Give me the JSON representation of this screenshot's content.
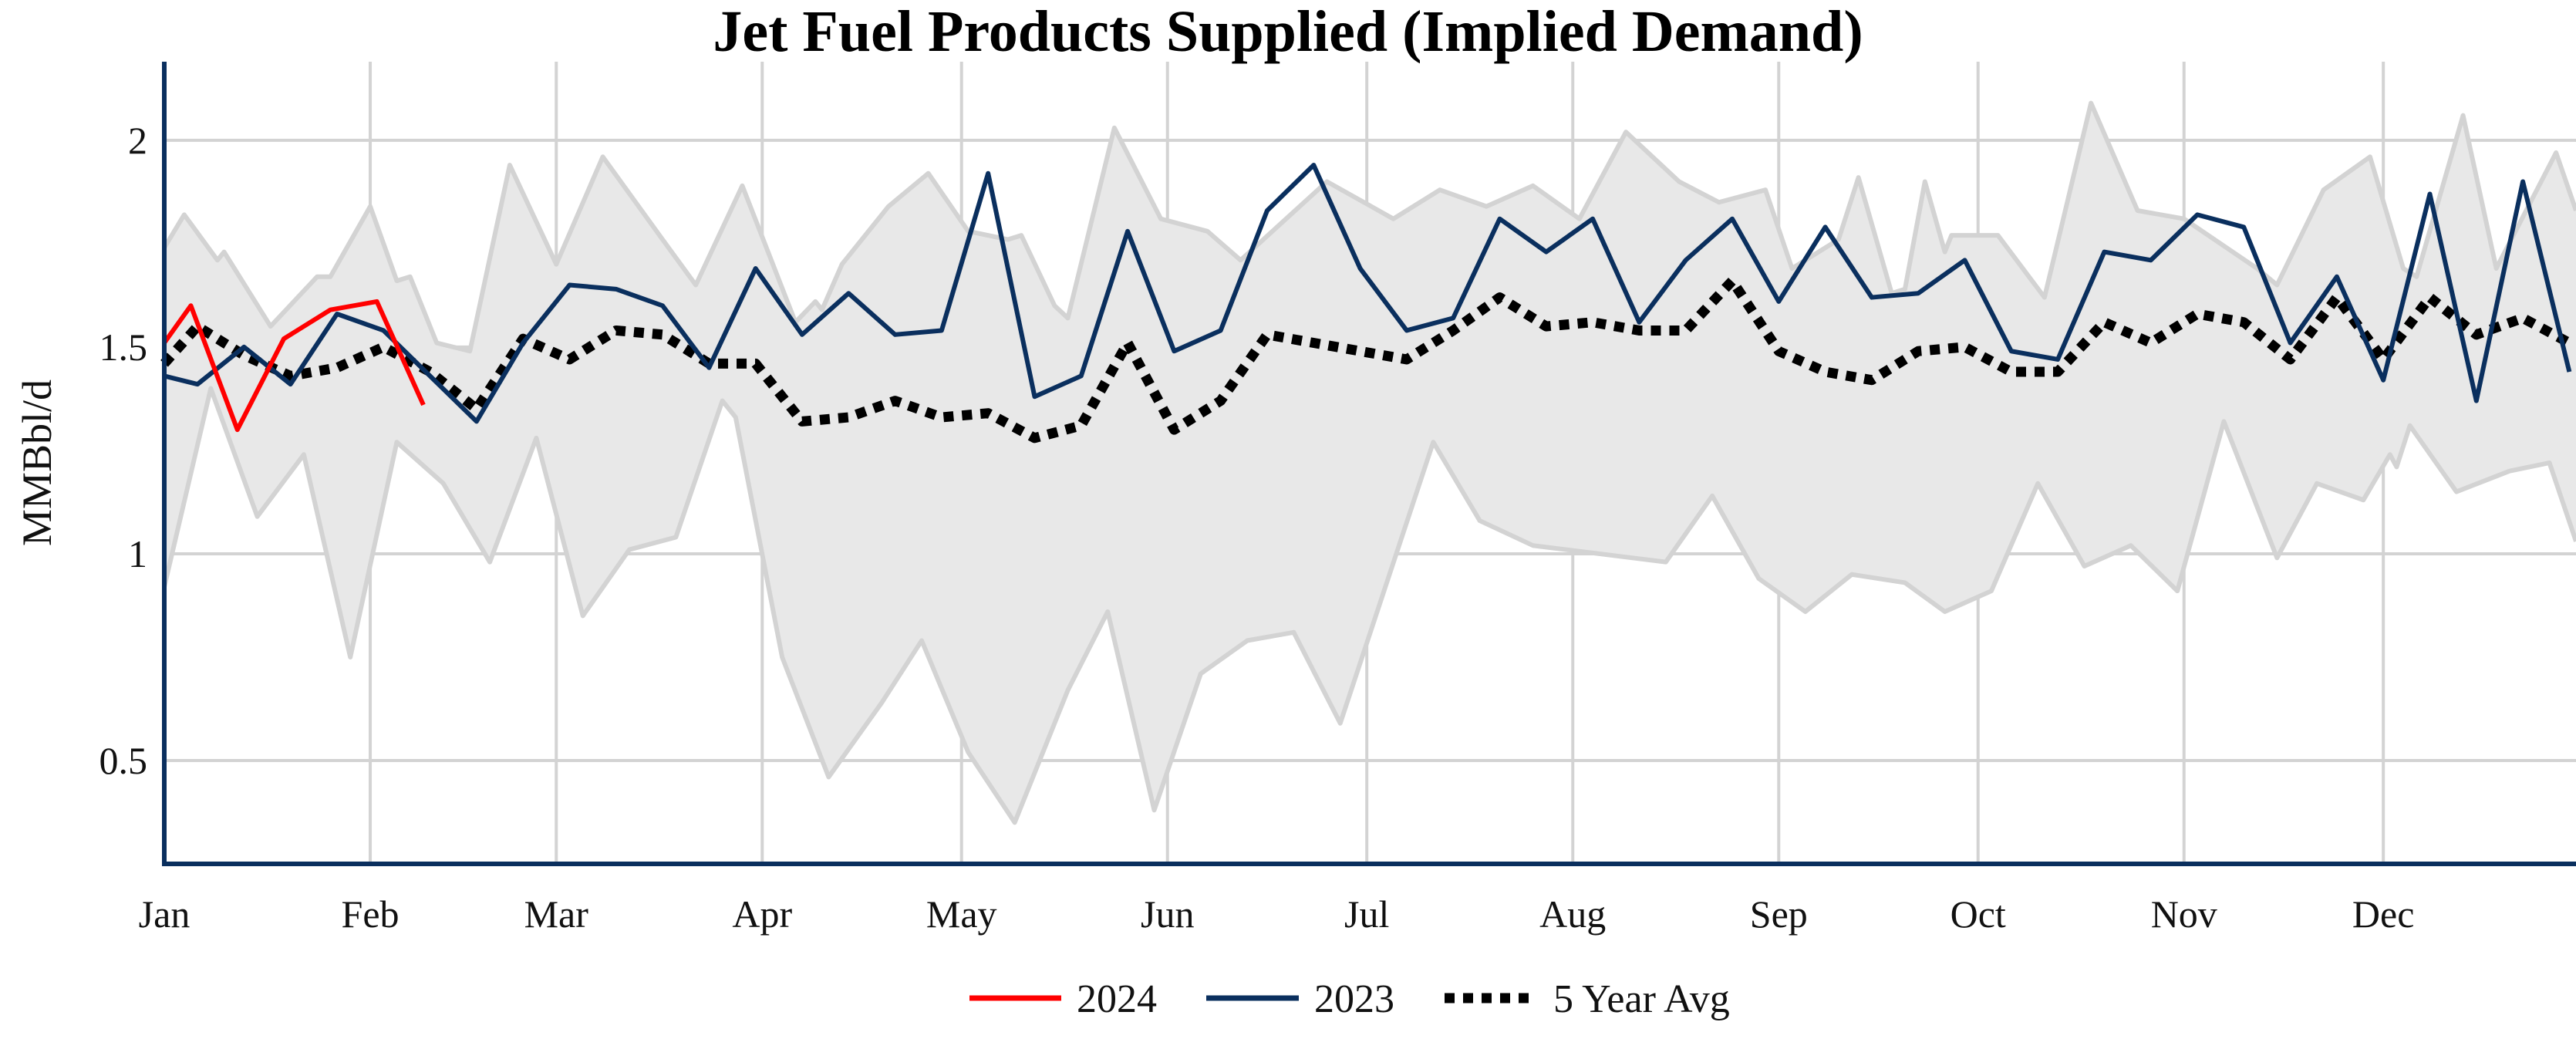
{
  "chart_data": {
    "type": "line",
    "title": "Jet Fuel Products Supplied (Implied Demand)",
    "xlabel": "",
    "ylabel": "MMBbl/d",
    "x_tick_labels": [
      "Jan",
      "Feb",
      "Mar",
      "Apr",
      "May",
      "Jun",
      "Jul",
      "Aug",
      "Sep",
      "Oct",
      "Nov",
      "Dec"
    ],
    "x_tick_dates": [
      "01-01",
      "02-01",
      "03-01",
      "04-01",
      "05-01",
      "06-01",
      "07-01",
      "08-01",
      "09-01",
      "10-01",
      "11-01",
      "12-01"
    ],
    "xlim": [
      "01-01",
      "12-30"
    ],
    "y_ticks": [
      0.5,
      1,
      1.5,
      2
    ],
    "y_tick_labels": [
      "0.5",
      "1",
      "1.5",
      "2"
    ],
    "ylim": [
      0.25,
      2.19
    ],
    "grid": true,
    "legend_position": "bottom-center",
    "colors": {
      "2024": "#ff0000",
      "2023": "#0a2f5e",
      "avg": "#000000",
      "range_fill": "#e8e8e8",
      "range_edge": "#d3d3d3",
      "grid": "#d3d3d3",
      "axis": "#0a2f5e"
    },
    "series": [
      {
        "name": "2024",
        "style": "solid",
        "x": [
          "01-01",
          "01-05",
          "01-12",
          "01-19",
          "01-26",
          "02-02",
          "02-09"
        ],
        "y": [
          1.51,
          1.6,
          1.3,
          1.52,
          1.59,
          1.61,
          1.36
        ]
      },
      {
        "name": "2023",
        "style": "solid",
        "x": [
          "01-01",
          "01-06",
          "01-13",
          "01-20",
          "01-27",
          "02-03",
          "02-10",
          "02-17",
          "02-24",
          "03-03",
          "03-10",
          "03-17",
          "03-24",
          "03-31",
          "04-07",
          "04-14",
          "04-21",
          "04-28",
          "05-05",
          "05-12",
          "05-19",
          "05-26",
          "06-02",
          "06-09",
          "06-16",
          "06-23",
          "06-30",
          "07-07",
          "07-14",
          "07-21",
          "07-28",
          "08-04",
          "08-11",
          "08-18",
          "08-25",
          "09-01",
          "09-08",
          "09-15",
          "09-22",
          "09-29",
          "10-06",
          "10-13",
          "10-20",
          "10-27",
          "11-03",
          "11-10",
          "11-17",
          "11-24",
          "12-01",
          "12-08",
          "12-15",
          "12-22",
          "12-29"
        ],
        "y": [
          1.43,
          1.41,
          1.5,
          1.41,
          1.58,
          1.54,
          1.43,
          1.32,
          1.51,
          1.65,
          1.64,
          1.6,
          1.45,
          1.69,
          1.53,
          1.63,
          1.53,
          1.54,
          1.92,
          1.38,
          1.43,
          1.78,
          1.49,
          1.54,
          1.83,
          1.94,
          1.69,
          1.54,
          1.57,
          1.81,
          1.73,
          1.81,
          1.56,
          1.71,
          1.81,
          1.61,
          1.79,
          1.62,
          1.63,
          1.71,
          1.49,
          1.47,
          1.73,
          1.71,
          1.82,
          1.79,
          1.51,
          1.67,
          1.42,
          1.87,
          1.37,
          1.9,
          1.44
        ]
      },
      {
        "name": "5 Year Avg",
        "style": "dotted",
        "x": [
          "01-01",
          "01-06",
          "01-13",
          "01-20",
          "01-27",
          "02-03",
          "02-10",
          "02-17",
          "02-24",
          "03-03",
          "03-10",
          "03-17",
          "03-24",
          "03-31",
          "04-07",
          "04-14",
          "04-21",
          "04-28",
          "05-05",
          "05-12",
          "05-19",
          "05-26",
          "06-02",
          "06-09",
          "06-16",
          "06-23",
          "06-30",
          "07-07",
          "07-14",
          "07-21",
          "07-28",
          "08-04",
          "08-11",
          "08-18",
          "08-25",
          "09-01",
          "09-08",
          "09-15",
          "09-22",
          "09-29",
          "10-06",
          "10-13",
          "10-20",
          "10-27",
          "11-03",
          "11-10",
          "11-17",
          "11-24",
          "12-01",
          "12-08",
          "12-15",
          "12-22",
          "12-29"
        ],
        "y": [
          1.46,
          1.55,
          1.48,
          1.43,
          1.45,
          1.5,
          1.44,
          1.35,
          1.52,
          1.47,
          1.54,
          1.53,
          1.46,
          1.46,
          1.32,
          1.33,
          1.37,
          1.33,
          1.34,
          1.28,
          1.31,
          1.51,
          1.3,
          1.37,
          1.53,
          1.51,
          1.49,
          1.47,
          1.54,
          1.62,
          1.55,
          1.56,
          1.54,
          1.54,
          1.66,
          1.49,
          1.44,
          1.42,
          1.49,
          1.5,
          1.44,
          1.44,
          1.56,
          1.51,
          1.58,
          1.56,
          1.47,
          1.62,
          1.47,
          1.62,
          1.53,
          1.57,
          1.51
        ]
      }
    ],
    "range_band": {
      "upper": {
        "x": [
          "01-01",
          "01-04",
          "01-09",
          "01-10",
          "01-17",
          "01-24",
          "01-26",
          "02-01",
          "02-05",
          "02-07",
          "02-11",
          "02-16",
          "02-22",
          "03-01",
          "03-08",
          "03-17",
          "03-22",
          "03-29",
          "04-06",
          "04-09",
          "04-10",
          "04-13",
          "04-20",
          "04-26",
          "05-02",
          "05-08",
          "05-10",
          "05-15",
          "05-17",
          "05-24",
          "05-31",
          "06-07",
          "06-12",
          "06-25",
          "07-05",
          "07-12",
          "07-19",
          "07-26",
          "08-02",
          "08-09",
          "08-17",
          "08-23",
          "08-30",
          "09-03",
          "09-10",
          "09-13",
          "09-18",
          "09-20",
          "09-23",
          "09-26",
          "09-27",
          "10-04",
          "10-11",
          "10-18",
          "10-25",
          "11-01",
          "11-12",
          "11-15",
          "11-22",
          "11-29",
          "12-04",
          "12-06",
          "12-13",
          "12-18",
          "12-27",
          "12-30"
        ],
        "y": [
          1.74,
          1.82,
          1.71,
          1.73,
          1.55,
          1.67,
          1.67,
          1.84,
          1.66,
          1.67,
          1.51,
          1.49,
          1.94,
          1.7,
          1.96,
          1.76,
          1.65,
          1.89,
          1.56,
          1.61,
          1.59,
          1.7,
          1.84,
          1.92,
          1.78,
          1.76,
          1.77,
          1.6,
          1.57,
          2.03,
          1.81,
          1.78,
          1.71,
          1.9,
          1.81,
          1.88,
          1.84,
          1.89,
          1.81,
          2.02,
          1.9,
          1.85,
          1.88,
          1.69,
          1.76,
          1.91,
          1.63,
          1.64,
          1.9,
          1.73,
          1.77,
          1.77,
          1.62,
          2.09,
          1.83,
          1.81,
          1.69,
          1.65,
          1.88,
          1.96,
          1.69,
          1.67,
          2.06,
          1.69,
          1.97,
          1.83
        ]
      },
      "lower": {
        "x": [
          "01-01",
          "01-08",
          "01-15",
          "01-22",
          "01-29",
          "02-05",
          "02-12",
          "02-19",
          "02-26",
          "03-05",
          "03-12",
          "03-19",
          "03-26",
          "03-28",
          "04-04",
          "04-11",
          "04-19",
          "04-25",
          "05-02",
          "05-09",
          "05-17",
          "05-23",
          "05-30",
          "06-06",
          "06-13",
          "06-20",
          "06-27",
          "07-11",
          "07-18",
          "07-26",
          "08-10",
          "08-15",
          "08-22",
          "08-29",
          "09-05",
          "09-12",
          "09-20",
          "09-26",
          "10-03",
          "10-10",
          "10-17",
          "10-24",
          "10-31",
          "11-07",
          "11-15",
          "11-21",
          "11-28",
          "12-02",
          "12-03",
          "12-05",
          "12-12",
          "12-20",
          "12-26",
          "12-30"
        ],
        "y": [
          0.92,
          1.4,
          1.09,
          1.24,
          0.75,
          1.27,
          1.17,
          0.98,
          1.28,
          0.85,
          1.01,
          1.04,
          1.37,
          1.33,
          0.75,
          0.46,
          0.64,
          0.79,
          0.52,
          0.35,
          0.67,
          0.86,
          0.38,
          0.71,
          0.79,
          0.81,
          0.59,
          1.27,
          1.08,
          1.02,
          0.99,
          0.98,
          1.14,
          0.94,
          0.86,
          0.95,
          0.93,
          0.86,
          0.91,
          1.17,
          0.97,
          1.02,
          0.91,
          1.32,
          0.99,
          1.17,
          1.13,
          1.24,
          1.21,
          1.31,
          1.15,
          1.2,
          1.22,
          1.03
        ]
      }
    }
  }
}
